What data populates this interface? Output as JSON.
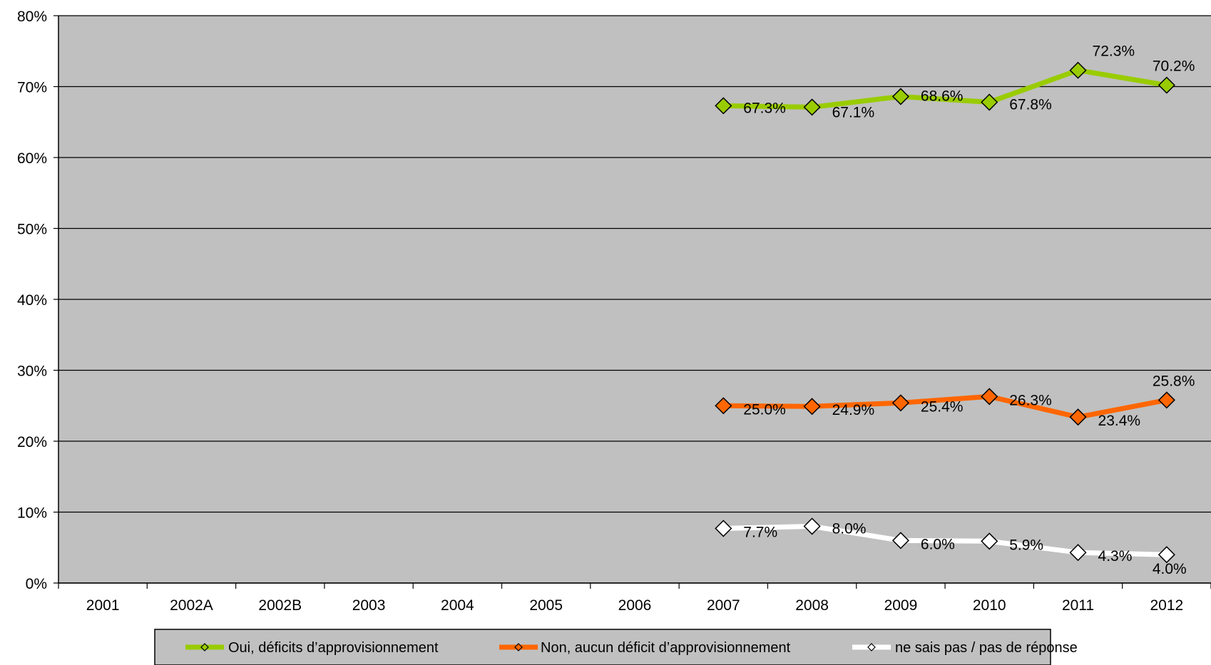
{
  "chart_data": {
    "type": "line",
    "categories": [
      "2001",
      "2002A",
      "2002B",
      "2003",
      "2004",
      "2005",
      "2006",
      "2007",
      "2008",
      "2009",
      "2010",
      "2011",
      "2012"
    ],
    "ylim": [
      0,
      80
    ],
    "y_ticks": [
      "0%",
      "10%",
      "20%",
      "30%",
      "40%",
      "50%",
      "60%",
      "70%",
      "80%"
    ],
    "grid": true,
    "plot_background": "#c0c0c0",
    "legend_position": "bottom",
    "series": [
      {
        "name": "Oui, déficits d’approvisionnement",
        "color": "#99cc00",
        "values": [
          null,
          null,
          null,
          null,
          null,
          null,
          null,
          67.3,
          67.1,
          68.6,
          67.8,
          72.3,
          70.2
        ],
        "labels": [
          "",
          "",
          "",
          "",
          "",
          "",
          "",
          "67.3%",
          "67.1%",
          "68.6%",
          "67.8%",
          "72.3%",
          "70.2%"
        ]
      },
      {
        "name": "Non, aucun déficit d’approvisionnement",
        "color": "#ff6600",
        "values": [
          null,
          null,
          null,
          null,
          null,
          null,
          null,
          25.0,
          24.9,
          25.4,
          26.3,
          23.4,
          25.8
        ],
        "labels": [
          "",
          "",
          "",
          "",
          "",
          "",
          "",
          "25.0%",
          "24.9%",
          "25.4%",
          "26.3%",
          "23.4%",
          "25.8%"
        ]
      },
      {
        "name": "ne sais pas / pas de réponse",
        "color": "#ffffff",
        "values": [
          null,
          null,
          null,
          null,
          null,
          null,
          null,
          7.7,
          8.0,
          6.0,
          5.9,
          4.3,
          4.0
        ],
        "labels": [
          "",
          "",
          "",
          "",
          "",
          "",
          "",
          "7.7%",
          "8.0%",
          "6.0%",
          "5.9%",
          "4.3%",
          "4.0%"
        ]
      }
    ]
  }
}
